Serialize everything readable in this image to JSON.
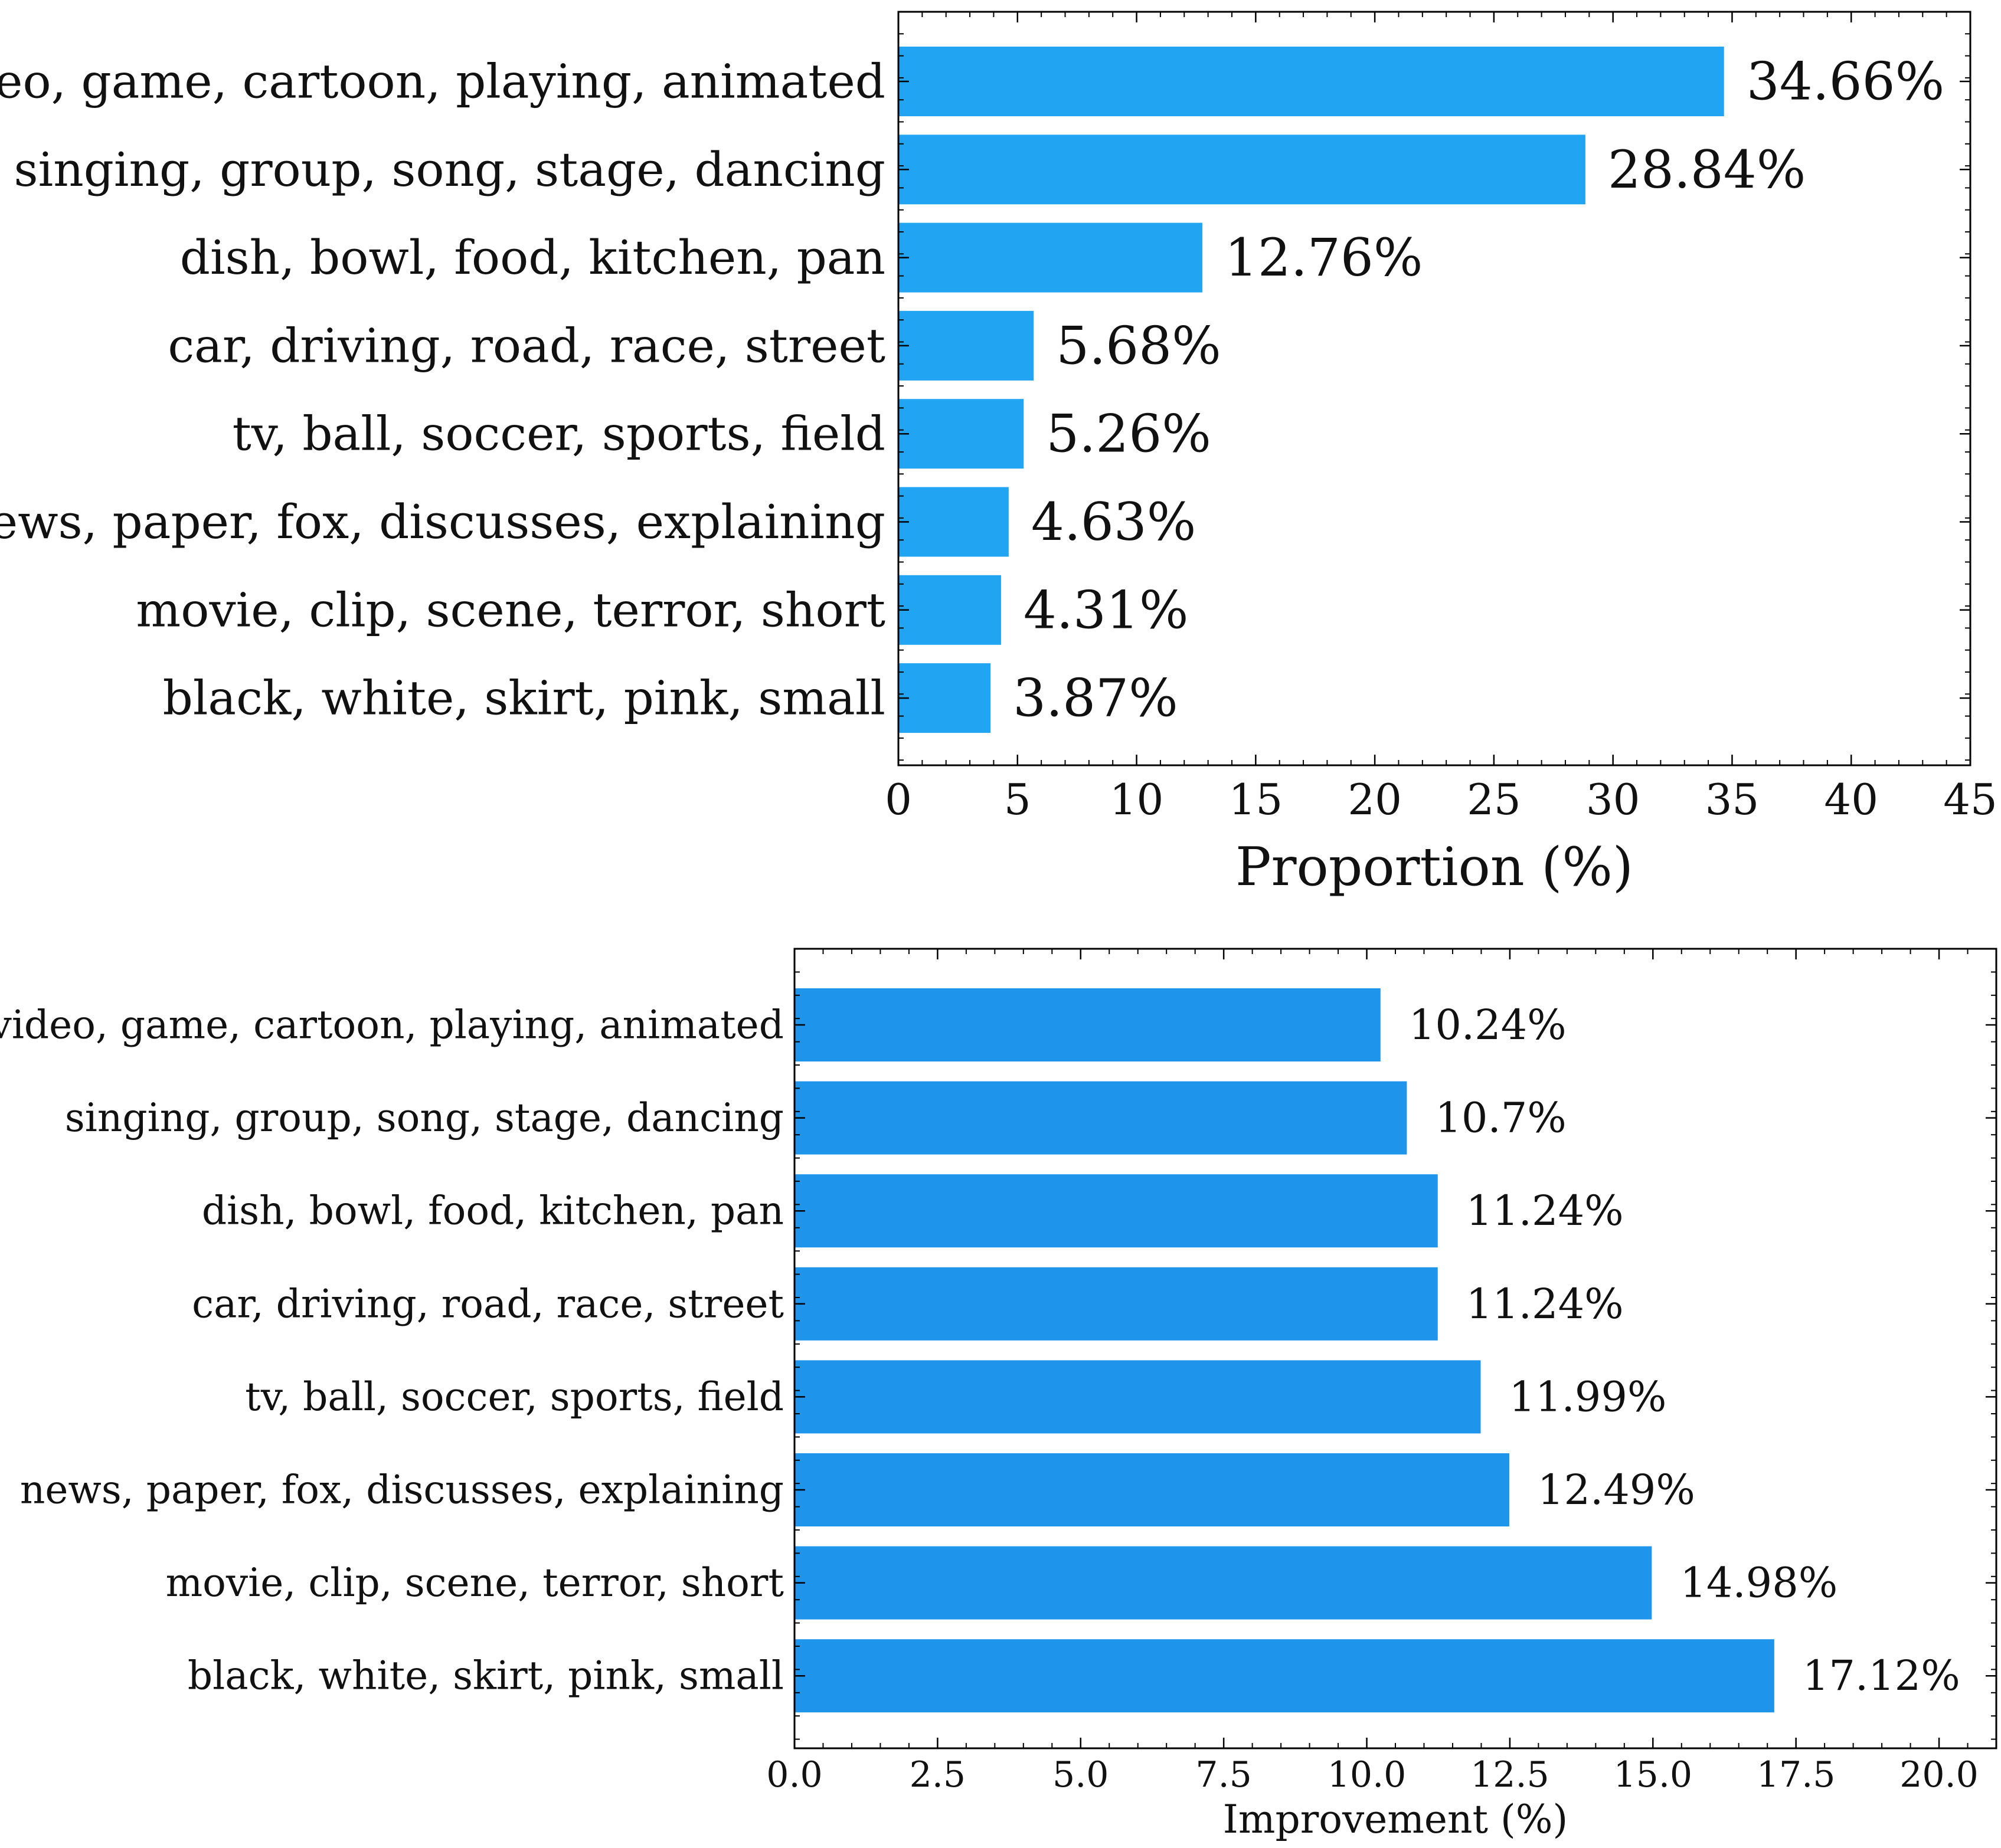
{
  "chart_data": [
    {
      "type": "bar",
      "orientation": "horizontal",
      "categories": [
        "video, game, cartoon, playing, animated",
        "singing, group, song, stage, dancing",
        "dish, bowl, food, kitchen, pan",
        "car, driving, road, race, street",
        "tv, ball, soccer, sports, field",
        "news, paper, fox, discusses, explaining",
        "movie, clip, scene, terror, short",
        "black, white, skirt, pink, small"
      ],
      "values": [
        34.66,
        28.84,
        12.76,
        5.68,
        5.26,
        4.63,
        4.31,
        3.87
      ],
      "value_labels": [
        "34.66%",
        "28.84%",
        "12.76%",
        "5.68%",
        "5.26%",
        "4.63%",
        "4.31%",
        "3.87%"
      ],
      "title": "",
      "xlabel": "Proportion (%)",
      "ylabel": "",
      "xlim": [
        0,
        45
      ],
      "x_ticks": [
        0,
        5,
        10,
        15,
        20,
        25,
        30,
        35,
        40,
        45
      ],
      "x_tick_labels": [
        "0",
        "5",
        "10",
        "15",
        "20",
        "25",
        "30",
        "35",
        "40",
        "45"
      ],
      "grid": false,
      "bar_color": "#21a4f1"
    },
    {
      "type": "bar",
      "orientation": "horizontal",
      "categories": [
        "video, game, cartoon, playing, animated",
        "singing, group, song, stage, dancing",
        "dish, bowl, food, kitchen, pan",
        "car, driving, road, race, street",
        "tv, ball, soccer, sports, field",
        "news, paper, fox, discusses, explaining",
        "movie, clip, scene, terror, short",
        "black, white, skirt, pink, small"
      ],
      "values": [
        10.24,
        10.7,
        11.24,
        11.24,
        11.99,
        12.49,
        14.98,
        17.12
      ],
      "value_labels": [
        "10.24%",
        "10.7%",
        "11.24%",
        "11.24%",
        "11.99%",
        "12.49%",
        "14.98%",
        "17.12%"
      ],
      "title": "",
      "xlabel": "Improvement (%)",
      "ylabel": "",
      "xlim": [
        0,
        21
      ],
      "x_ticks": [
        0,
        2.5,
        5,
        7.5,
        10,
        12.5,
        15,
        17.5,
        20
      ],
      "x_tick_labels": [
        "0.0",
        "2.5",
        "5.0",
        "7.5",
        "10.0",
        "12.5",
        "15.0",
        "17.5",
        "20.0"
      ],
      "grid": false,
      "bar_color": "#1e94eb"
    }
  ]
}
